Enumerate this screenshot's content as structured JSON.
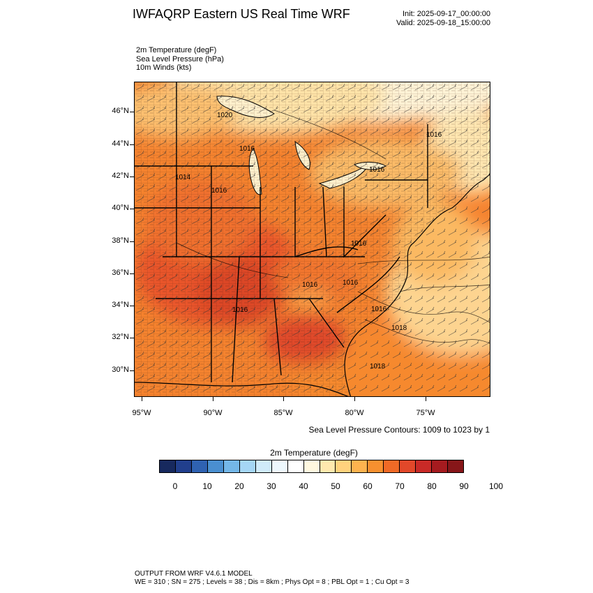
{
  "title": "IWFAQRP Eastern US Real Time WRF",
  "init_time": "Init: 2025-09-17_00:00:00",
  "valid_time": "Valid: 2025-09-18_15:00:00",
  "variables": [
    "2m Temperature   (degF)",
    "Sea Level Pressure   (hPa)",
    "10m Winds   (kts)"
  ],
  "lat_labels": [
    "46°N",
    "44°N",
    "42°N",
    "40°N",
    "38°N",
    "36°N",
    "34°N",
    "32°N",
    "30°N"
  ],
  "lon_labels": [
    "95°W",
    "90°W",
    "85°W",
    "80°W",
    "75°W"
  ],
  "slp_labels": [
    "1020",
    "1016",
    "1014",
    "1016",
    "1016",
    "1016",
    "1016",
    "1016",
    "1016",
    "1016",
    "1016",
    "1018",
    "1018",
    "1018"
  ],
  "contour_note": "Sea Level Pressure Contours: 1009 to 1023 by 1",
  "colorbar": {
    "title": "2m Temperature  (degF)",
    "labels": [
      "0",
      "10",
      "20",
      "30",
      "40",
      "50",
      "60",
      "70",
      "80",
      "90",
      "100"
    ],
    "colors": [
      "#17295e",
      "#213f8d",
      "#2f62b2",
      "#4a8fd0",
      "#74b7e8",
      "#a5d6f5",
      "#d0ebfa",
      "#eef8fd",
      "#ffffff",
      "#fff8e0",
      "#ffe9ae",
      "#ffd27d",
      "#fdb34f",
      "#f7902f",
      "#f06a26",
      "#e2482a",
      "#c92a27",
      "#a51b1f",
      "#871619"
    ]
  },
  "footer": {
    "line1": "OUTPUT FROM WRF V4.6.1 MODEL",
    "line2": "WE = 310 ; SN = 275 ; Levels = 38 ; Dis = 8km ; Phys Opt = 8 ; PBL Opt = 1 ; Cu Opt = 3"
  }
}
